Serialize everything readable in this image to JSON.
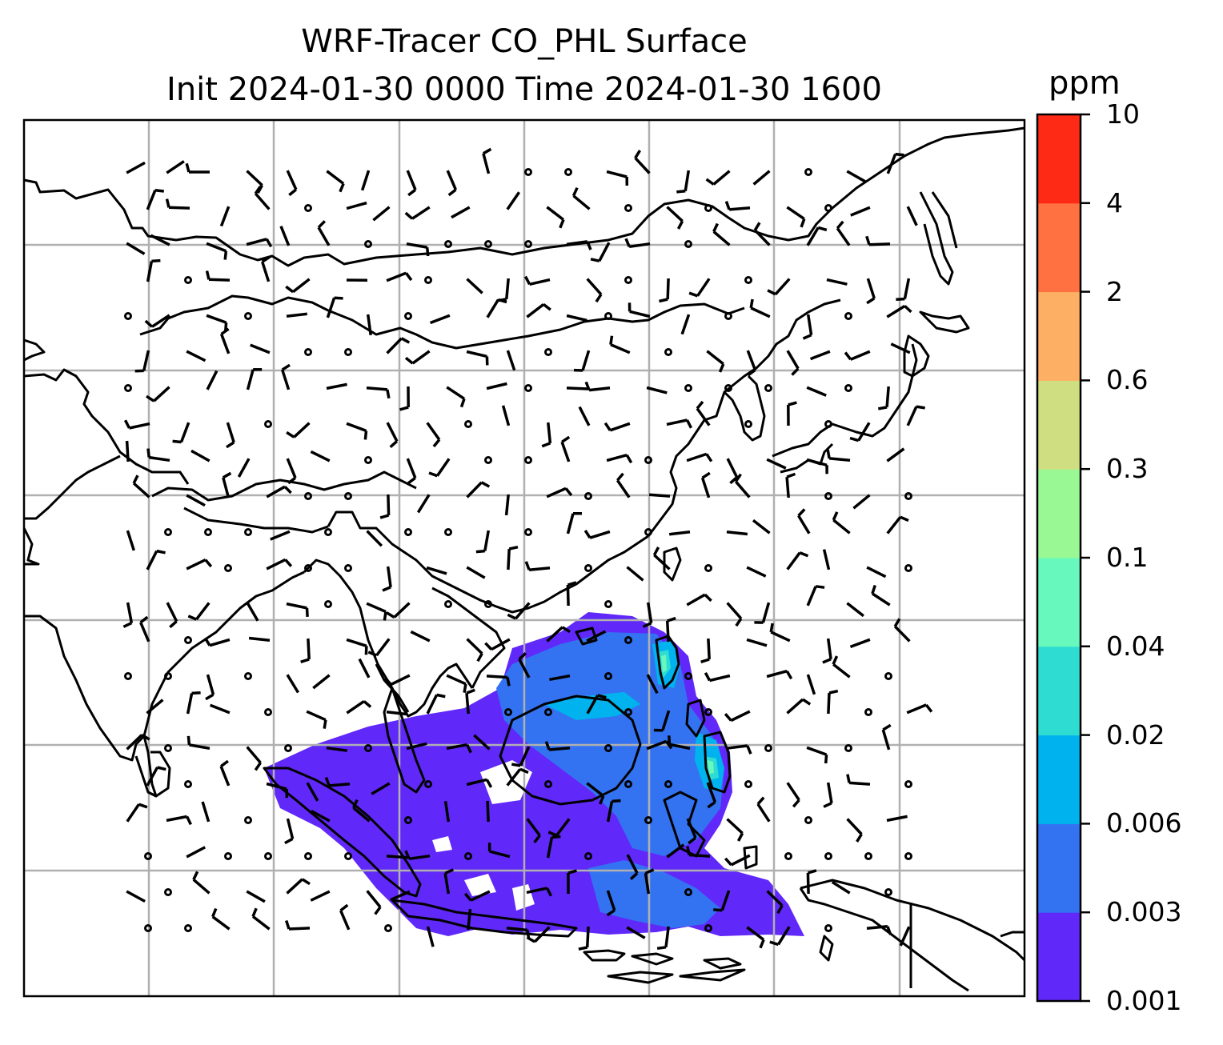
{
  "title": {
    "line1": "WRF-Tracer CO_PHL Surface",
    "line2": "Init 2024-01-30 0000 Time 2024-01-30 1600"
  },
  "colorbar": {
    "unit": "ppm",
    "labels": [
      "0.001",
      "0.003",
      "0.006",
      "0.02",
      "0.04",
      "0.1",
      "0.3",
      "0.6",
      "2",
      "4",
      "10"
    ],
    "colors": [
      "#6128fa",
      "#3373f2",
      "#00b3ee",
      "#2fdcd2",
      "#66f8bd",
      "#99f893",
      "#cede81",
      "#fdb063",
      "#ff7140",
      "#ff2a16"
    ]
  },
  "map": {
    "region": "Asia / Western Pacific",
    "gridlines": true,
    "coastline_color": "#000000",
    "wind_barbs": true,
    "tracer_field": "CO_PHL"
  }
}
